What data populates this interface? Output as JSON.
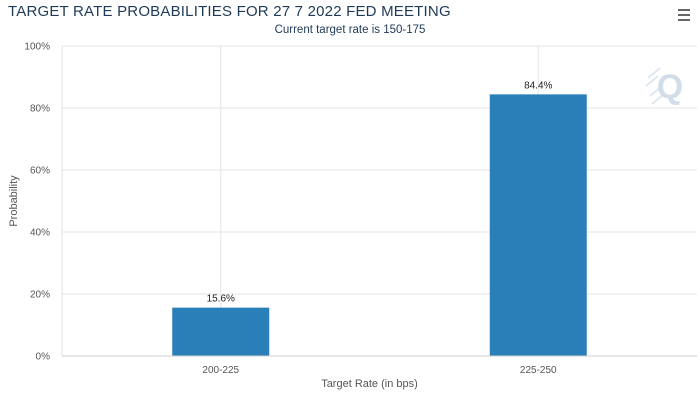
{
  "header": {
    "title": "TARGET RATE PROBABILITIES FOR 27 7 2022 FED MEETING",
    "subtitle": "Current target rate is 150-175"
  },
  "menu": {
    "icon": "hamburger-menu-icon"
  },
  "watermark": {
    "text": "Q"
  },
  "colors": {
    "bar": "#2a7fb8",
    "grid": "#e6e6e6",
    "title": "#1f3a57"
  },
  "chart_data": {
    "type": "bar",
    "title": "TARGET RATE PROBABILITIES FOR 27 7 2022 FED MEETING",
    "subtitle": "Current target rate is 150-175",
    "categories": [
      "200-225",
      "225-250"
    ],
    "values": [
      15.6,
      84.4
    ],
    "data_labels": [
      "15.6%",
      "84.4%"
    ],
    "xlabel": "Target Rate (in bps)",
    "ylabel": "Probability",
    "ylim": [
      0,
      100
    ],
    "yticks": [
      0,
      20,
      40,
      60,
      80,
      100
    ],
    "ytick_labels": [
      "0%",
      "20%",
      "40%",
      "60%",
      "80%",
      "100%"
    ],
    "grid": true,
    "legend": "none"
  }
}
